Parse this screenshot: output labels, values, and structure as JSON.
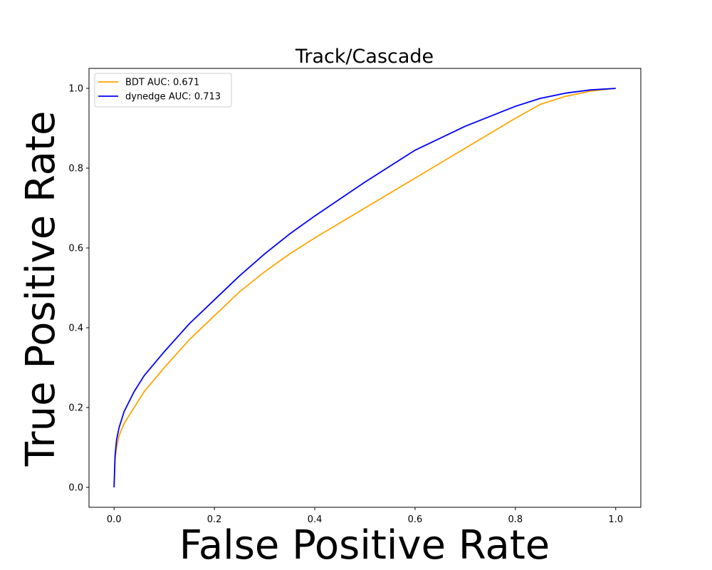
{
  "chart_data": {
    "type": "line",
    "title": "Track/Cascade",
    "xlabel": "False Positive Rate",
    "ylabel": "True Positive Rate",
    "xlim": [
      -0.05,
      1.05
    ],
    "ylim": [
      -0.05,
      1.05
    ],
    "xticks": [
      0.0,
      0.2,
      0.4,
      0.6,
      0.8,
      1.0
    ],
    "xtick_labels": [
      "0.0",
      "0.2",
      "0.4",
      "0.6",
      "0.8",
      "1.0"
    ],
    "yticks": [
      0.0,
      0.2,
      0.4,
      0.6,
      0.8,
      1.0
    ],
    "ytick_labels": [
      "0.0",
      "0.2",
      "0.4",
      "0.6",
      "0.8",
      "1.0"
    ],
    "grid": false,
    "legend_position": "upper-left",
    "series": [
      {
        "name": "BDT AUC: 0.671",
        "color": "#ffa500",
        "x": [
          0.0,
          0.002,
          0.005,
          0.01,
          0.02,
          0.04,
          0.06,
          0.08,
          0.1,
          0.15,
          0.2,
          0.25,
          0.3,
          0.35,
          0.4,
          0.5,
          0.6,
          0.7,
          0.8,
          0.85,
          0.9,
          0.95,
          1.0
        ],
        "y": [
          0.0,
          0.07,
          0.1,
          0.13,
          0.16,
          0.2,
          0.24,
          0.27,
          0.3,
          0.37,
          0.43,
          0.49,
          0.54,
          0.585,
          0.625,
          0.7,
          0.775,
          0.85,
          0.925,
          0.96,
          0.98,
          0.993,
          1.0
        ]
      },
      {
        "name": "dynedge AUC: 0.713",
        "color": "#0000ff",
        "x": [
          0.0,
          0.002,
          0.005,
          0.01,
          0.02,
          0.04,
          0.06,
          0.08,
          0.1,
          0.15,
          0.2,
          0.25,
          0.3,
          0.35,
          0.4,
          0.5,
          0.6,
          0.7,
          0.8,
          0.85,
          0.9,
          0.95,
          1.0
        ],
        "y": [
          0.0,
          0.08,
          0.12,
          0.15,
          0.19,
          0.24,
          0.28,
          0.31,
          0.34,
          0.41,
          0.47,
          0.53,
          0.585,
          0.635,
          0.68,
          0.765,
          0.845,
          0.905,
          0.955,
          0.975,
          0.988,
          0.996,
          1.0
        ]
      }
    ]
  }
}
